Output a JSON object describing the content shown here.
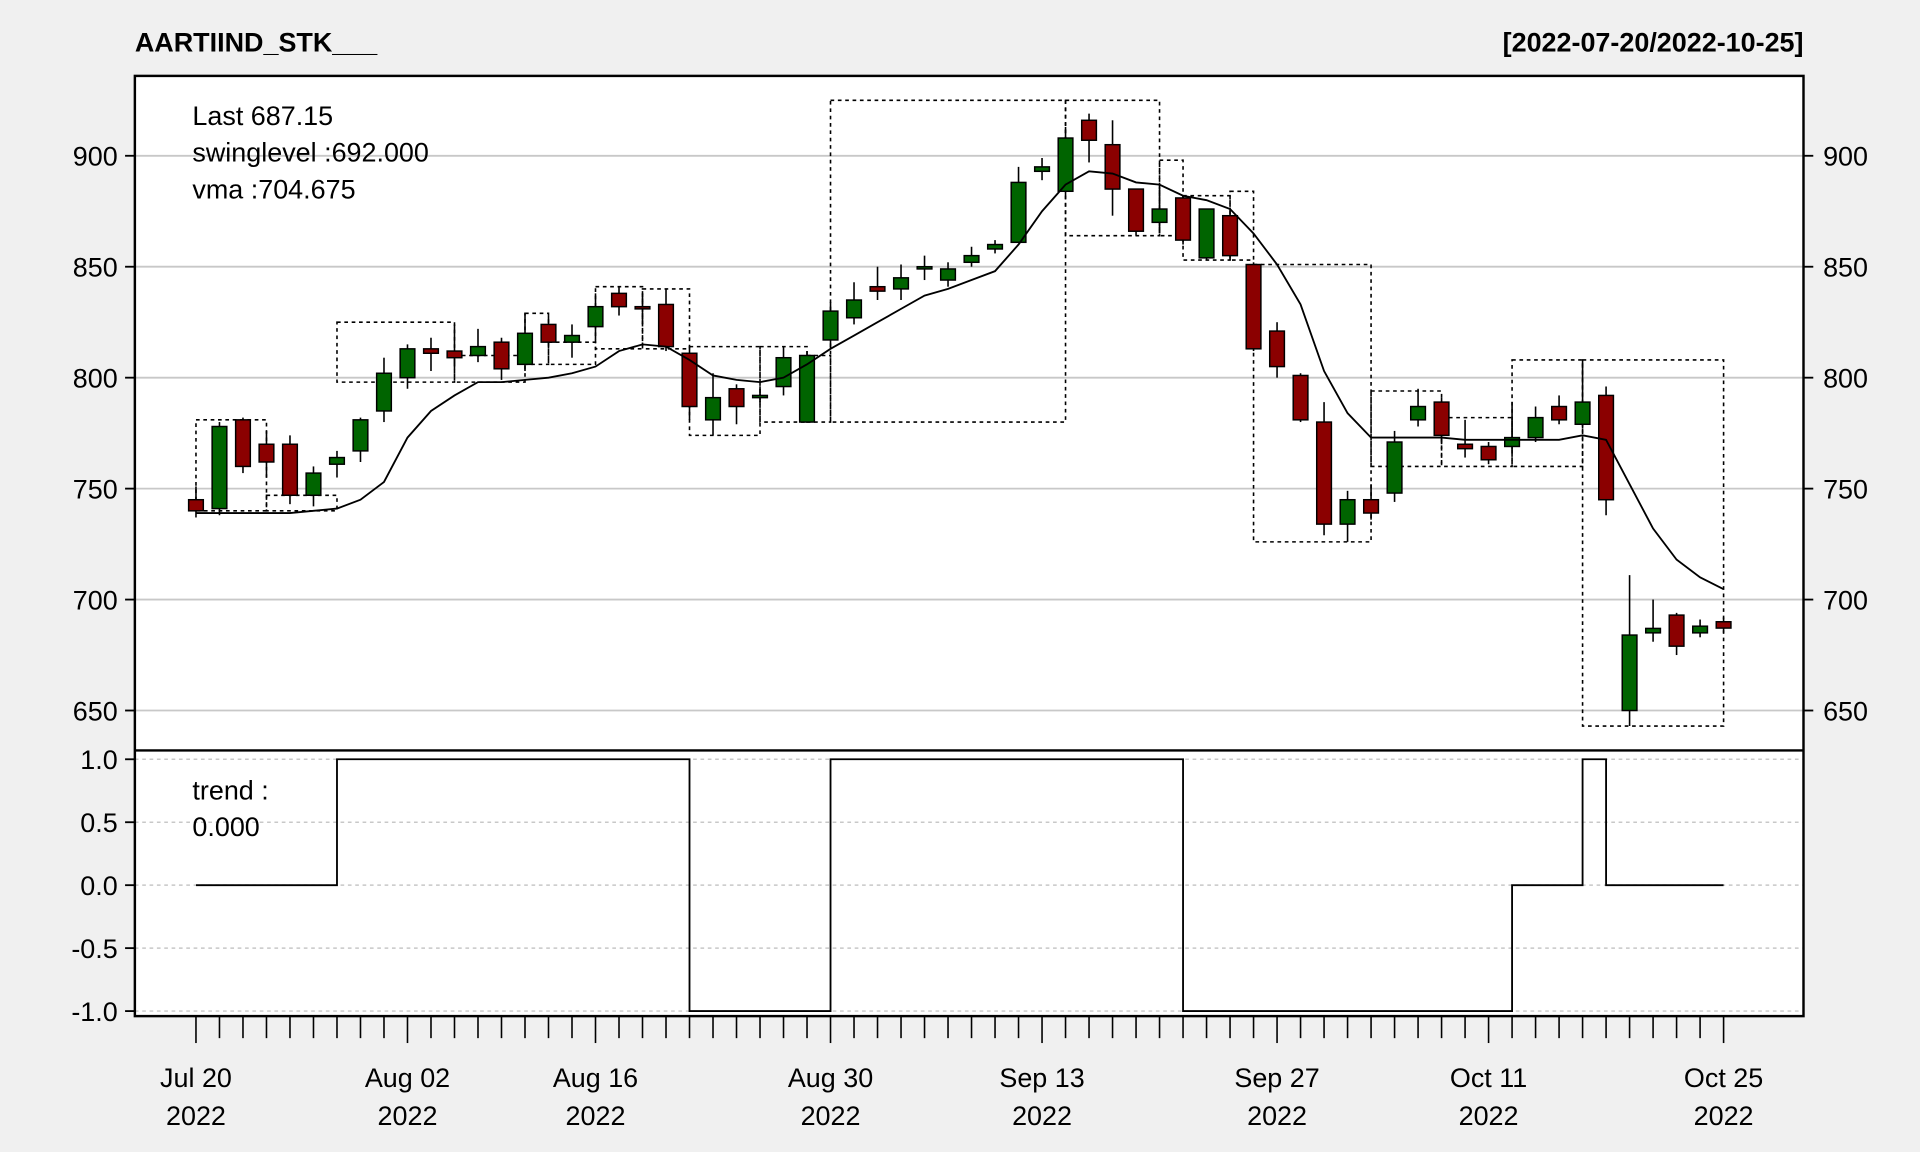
{
  "chart_data": [
    {
      "type": "candlestick",
      "title": "AARTIIND_STK___",
      "subtitle": "[2022-07-20/2022-10-25]",
      "legend": [
        "Last 687.15",
        "swinglevel :692.000",
        "vma :704.675"
      ],
      "legend_colors": [
        "#8b0000",
        "#000000",
        "#000000"
      ],
      "categories": [
        "Jul 20\n2022",
        null,
        null,
        null,
        null,
        null,
        null,
        null,
        null,
        "Aug 02\n2022",
        null,
        null,
        null,
        null,
        null,
        null,
        null,
        "Aug 16\n2022",
        null,
        null,
        null,
        null,
        null,
        null,
        null,
        null,
        null,
        "Aug 30\n2022",
        null,
        null,
        null,
        null,
        null,
        null,
        null,
        null,
        "Sep 13\n2022",
        null,
        null,
        null,
        null,
        null,
        null,
        null,
        null,
        null,
        "Sep 27\n2022",
        null,
        null,
        null,
        null,
        null,
        null,
        null,
        null,
        "Oct 11\n2022",
        null,
        null,
        null,
        null,
        null,
        null,
        null,
        null,
        null,
        "Oct 25\n2022"
      ],
      "open": [
        745,
        741,
        781,
        770,
        770,
        747,
        761,
        767,
        785,
        800,
        813,
        812,
        810,
        816,
        806,
        824,
        816,
        823,
        838,
        832,
        833,
        811,
        781,
        795,
        791,
        796,
        780,
        817,
        827,
        841,
        840,
        849,
        844,
        852,
        858,
        861,
        893,
        884,
        916,
        905,
        885,
        870,
        881,
        854,
        873,
        851,
        821,
        801,
        780,
        734,
        745,
        748,
        781,
        789,
        770,
        769,
        769,
        773,
        787,
        779,
        792,
        650,
        685,
        693,
        685,
        690
      ],
      "high": [
        751,
        780,
        782,
        776,
        774,
        760,
        767,
        782,
        809,
        815,
        818,
        824,
        822,
        818,
        829,
        828,
        824,
        838,
        841,
        838,
        840,
        813,
        802,
        797,
        795,
        814,
        812,
        834,
        843,
        850,
        851,
        855,
        852,
        859,
        862,
        895,
        899,
        913,
        919,
        916,
        885,
        886,
        882,
        876,
        875,
        852,
        825,
        802,
        789,
        749,
        752,
        776,
        795,
        791,
        781,
        771,
        789,
        787,
        792,
        808,
        796,
        711,
        700,
        694,
        691,
        692
      ],
      "low": [
        737,
        738,
        757,
        755,
        743,
        742,
        755,
        762,
        780,
        795,
        803,
        805,
        807,
        799,
        803,
        814,
        809,
        817,
        828,
        824,
        812,
        781,
        774,
        779,
        789,
        792,
        780,
        813,
        824,
        835,
        835,
        844,
        841,
        850,
        856,
        861,
        889,
        882,
        897,
        873,
        864,
        865,
        860,
        853,
        853,
        812,
        800,
        780,
        729,
        726,
        736,
        744,
        778,
        770,
        764,
        761,
        766,
        771,
        779,
        777,
        738,
        643,
        681,
        675,
        683,
        685
      ],
      "close": [
        740,
        778,
        760,
        762,
        747,
        757,
        764,
        781,
        802,
        813,
        811,
        809,
        814,
        804,
        820,
        816,
        819,
        832,
        832,
        831,
        814,
        787,
        791,
        787,
        792,
        809,
        810,
        830,
        835,
        839,
        845,
        850,
        849,
        855,
        860,
        888,
        895,
        908,
        907,
        885,
        866,
        876,
        862,
        876,
        855,
        813,
        805,
        781,
        734,
        745,
        739,
        771,
        787,
        774,
        768,
        763,
        773,
        782,
        781,
        789,
        745,
        684,
        687,
        679,
        688,
        687.15
      ],
      "up_color": "#006400",
      "down_color": "#8b0000",
      "line": {
        "color": "#000000",
        "values": [
          739,
          739,
          739,
          739,
          739,
          740,
          741,
          745,
          753,
          773,
          785,
          792,
          798,
          798,
          799,
          800,
          802,
          805,
          812,
          815,
          814,
          808,
          801,
          799,
          798,
          800,
          806,
          813,
          819,
          825,
          831,
          837,
          840,
          844,
          848,
          860,
          875,
          887,
          893,
          892,
          888,
          887,
          882,
          880,
          876,
          865,
          851,
          833,
          803,
          784,
          773,
          773,
          773,
          773,
          772,
          772,
          772,
          772,
          772,
          774,
          772,
          752,
          732,
          718,
          710,
          704.675
        ]
      },
      "boxes": [
        {
          "x": [
            0,
            3
          ],
          "y": [
            740,
            781
          ]
        },
        {
          "x": [
            3,
            6
          ],
          "y": [
            740,
            747
          ]
        },
        {
          "x": [
            6,
            11
          ],
          "y": [
            798,
            825
          ]
        },
        {
          "x": [
            11,
            14
          ],
          "y": [
            798,
            810
          ]
        },
        {
          "x": [
            14,
            15
          ],
          "y": [
            806,
            829
          ]
        },
        {
          "x": [
            15,
            17
          ],
          "y": [
            806,
            816
          ]
        },
        {
          "x": [
            17,
            19
          ],
          "y": [
            813,
            841
          ]
        },
        {
          "x": [
            19,
            21
          ],
          "y": [
            813,
            840
          ]
        },
        {
          "x": [
            21,
            24
          ],
          "y": [
            774,
            814
          ]
        },
        {
          "x": [
            24,
            26
          ],
          "y": [
            780,
            814
          ]
        },
        {
          "x": [
            26,
            27
          ],
          "y": [
            780,
            810
          ]
        },
        {
          "x": [
            27,
            37
          ],
          "y": [
            780,
            925
          ]
        },
        {
          "x": [
            37,
            41
          ],
          "y": [
            864,
            925
          ]
        },
        {
          "x": [
            41,
            42
          ],
          "y": [
            864,
            898
          ]
        },
        {
          "x": [
            42,
            44
          ],
          "y": [
            853,
            882
          ]
        },
        {
          "x": [
            44,
            45
          ],
          "y": [
            853,
            884
          ]
        },
        {
          "x": [
            45,
            50
          ],
          "y": [
            726,
            851
          ]
        },
        {
          "x": [
            50,
            53
          ],
          "y": [
            760,
            794
          ]
        },
        {
          "x": [
            53,
            56
          ],
          "y": [
            760,
            782
          ]
        },
        {
          "x": [
            56,
            59
          ],
          "y": [
            760,
            808
          ]
        },
        {
          "x": [
            59,
            65
          ],
          "y": [
            643,
            808
          ]
        }
      ],
      "xlim": [
        -2.6,
        68.4
      ],
      "ylim": [
        632,
        936
      ],
      "yticks": [
        650,
        700,
        750,
        800,
        850,
        900
      ],
      "grid": true
    },
    {
      "type": "step",
      "legend": [
        "trend :",
        "0.000"
      ],
      "color": "#000000",
      "values": [
        0,
        0,
        0,
        0,
        0,
        0,
        1,
        1,
        1,
        1,
        1,
        1,
        1,
        1,
        1,
        1,
        1,
        1,
        1,
        1,
        1,
        -1,
        -1,
        -1,
        -1,
        -1,
        -1,
        1,
        1,
        1,
        1,
        1,
        1,
        1,
        1,
        1,
        1,
        1,
        1,
        1,
        1,
        1,
        -1,
        -1,
        -1,
        -1,
        -1,
        -1,
        -1,
        -1,
        -1,
        -1,
        -1,
        -1,
        -1,
        -1,
        0,
        0,
        0,
        1,
        0,
        0,
        0,
        0,
        0,
        0
      ],
      "xlim": [
        -2.6,
        68.4
      ],
      "ylim": [
        -1.04,
        1.07
      ],
      "yticks": [
        {
          "value": 1,
          "label": "1.0"
        },
        {
          "value": 0.5,
          "label": "0.5"
        },
        {
          "value": 0,
          "label": "0.0"
        },
        {
          "value": -0.5,
          "label": "-0.5"
        },
        {
          "value": -1,
          "label": "-1.0"
        }
      ],
      "grid": true
    }
  ]
}
